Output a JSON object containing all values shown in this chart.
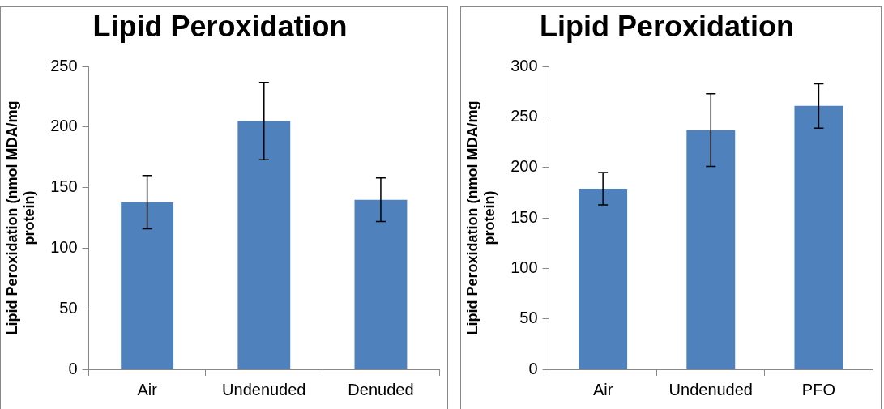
{
  "chart_data": [
    {
      "type": "bar",
      "title": "Lipid Peroxidation",
      "ylabel": "Lipid Peroxidation (nmol MDA/mg protein)",
      "categories": [
        "Air",
        "Undenuded",
        "Denuded"
      ],
      "series": [
        {
          "color": "#4f81bd",
          "values": [
            138,
            205,
            140
          ],
          "errors": [
            22,
            32,
            18
          ]
        }
      ],
      "ylim": [
        0,
        250
      ],
      "yticks": [
        0,
        50,
        100,
        150,
        200,
        250
      ],
      "grid": false,
      "legend": false
    },
    {
      "type": "bar",
      "title": "Lipid Peroxidation",
      "ylabel": "Lipid Peroxidation (nmol MDA/mg protein)",
      "categories": [
        "Air",
        "Undenuded",
        "PFO"
      ],
      "series": [
        {
          "color": "#4f81bd",
          "values": [
            179,
            237,
            261
          ],
          "errors": [
            16,
            36,
            22
          ]
        }
      ],
      "ylim": [
        0,
        300
      ],
      "yticks": [
        0,
        50,
        100,
        150,
        200,
        250,
        300
      ],
      "grid": false,
      "legend": false
    }
  ]
}
